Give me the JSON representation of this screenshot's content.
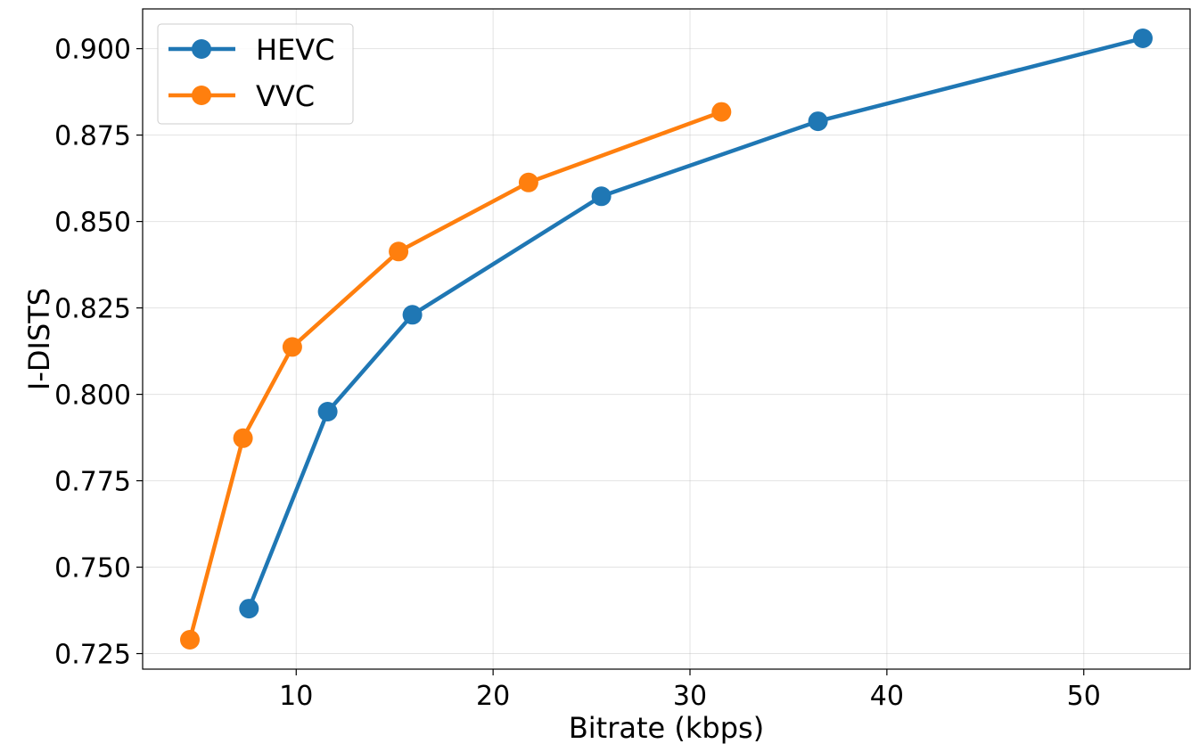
{
  "chart_data": {
    "type": "line",
    "title": "",
    "xlabel": "Bitrate (kbps)",
    "ylabel": "I-DISTS",
    "xlim": [
      2.2,
      55.4
    ],
    "ylim": [
      0.7205,
      0.9115
    ],
    "xticks": [
      10,
      20,
      30,
      40,
      50
    ],
    "yticks": [
      0.725,
      0.75,
      0.775,
      0.8,
      0.825,
      0.85,
      0.875,
      0.9
    ],
    "xtick_labels": [
      "10",
      "20",
      "30",
      "40",
      "50"
    ],
    "ytick_labels": [
      "0.725",
      "0.750",
      "0.775",
      "0.800",
      "0.825",
      "0.850",
      "0.875",
      "0.900"
    ],
    "grid": true,
    "legend_position": "top-left",
    "series": [
      {
        "name": "HEVC",
        "color": "#1f77b4",
        "x": [
          7.6,
          11.6,
          15.9,
          25.5,
          36.5,
          53.0
        ],
        "y": [
          0.738,
          0.795,
          0.823,
          0.8573,
          0.879,
          0.903
        ]
      },
      {
        "name": "VVC",
        "color": "#ff7f0e",
        "x": [
          4.6,
          7.3,
          9.8,
          15.2,
          21.8,
          31.6
        ],
        "y": [
          0.729,
          0.7873,
          0.8137,
          0.8413,
          0.8613,
          0.8817
        ]
      }
    ]
  }
}
